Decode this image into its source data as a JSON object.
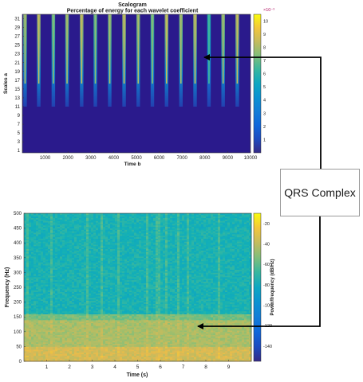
{
  "chart_data": [
    {
      "type": "heatmap",
      "title": "Scalogram",
      "subtitle": "Percentage of energy for each wavelet coefficient",
      "xlabel": "Time b",
      "ylabel": "Scales a",
      "xlim": [
        0,
        10000
      ],
      "ylim": [
        0.5,
        32
      ],
      "x_ticks": [
        1000,
        2000,
        3000,
        4000,
        5000,
        6000,
        7000,
        8000,
        9000,
        10000
      ],
      "y_ticks": [
        1,
        3,
        5,
        7,
        9,
        11,
        13,
        15,
        17,
        19,
        21,
        23,
        25,
        27,
        29,
        31
      ],
      "colorbar": {
        "exponent_label": "×10⁻³",
        "ticks": [
          1,
          2,
          3,
          4,
          5,
          6,
          7,
          8,
          9,
          10
        ],
        "range": [
          0,
          10.5
        ]
      },
      "peak_times": [
        120,
        720,
        1360,
        1960,
        2600,
        3200,
        3830,
        4460,
        5080,
        5700,
        6320,
        6950,
        7570,
        8180,
        8800,
        9420
      ],
      "peak_levels": [
        7.5,
        8,
        7,
        7.5,
        8,
        7,
        7.5,
        8,
        7.5,
        7,
        8,
        7.5,
        8,
        6,
        7.5,
        8
      ]
    },
    {
      "type": "heatmap",
      "title": "",
      "xlabel": "Time (s)",
      "ylabel": "Frequency (Hz)",
      "xlim": [
        0,
        10
      ],
      "ylim": [
        0,
        500
      ],
      "x_ticks": [
        1,
        2,
        3,
        4,
        5,
        6,
        7,
        8,
        9
      ],
      "y_ticks": [
        0,
        50,
        100,
        150,
        200,
        250,
        300,
        350,
        400,
        450,
        500
      ],
      "colorbar": {
        "label": "Power/frequency (dB/Hz)",
        "ticks": [
          -20,
          -40,
          -60,
          -80,
          -100,
          -120,
          -140
        ],
        "range": [
          -155,
          -10
        ]
      },
      "band_levels_db": [
        {
          "freq_max": 50,
          "db": -35
        },
        {
          "freq_max": 140,
          "db": -45
        },
        {
          "freq_max": 160,
          "db": -55
        },
        {
          "freq_max": 500,
          "db": -75
        }
      ],
      "bright_stripe_times": [
        0.2,
        1.25,
        2.75,
        3.45,
        4.15,
        5.45,
        5.9,
        6.3,
        6.75,
        7.2,
        8.6
      ]
    }
  ],
  "annotation": {
    "label": "QRS Complex"
  }
}
